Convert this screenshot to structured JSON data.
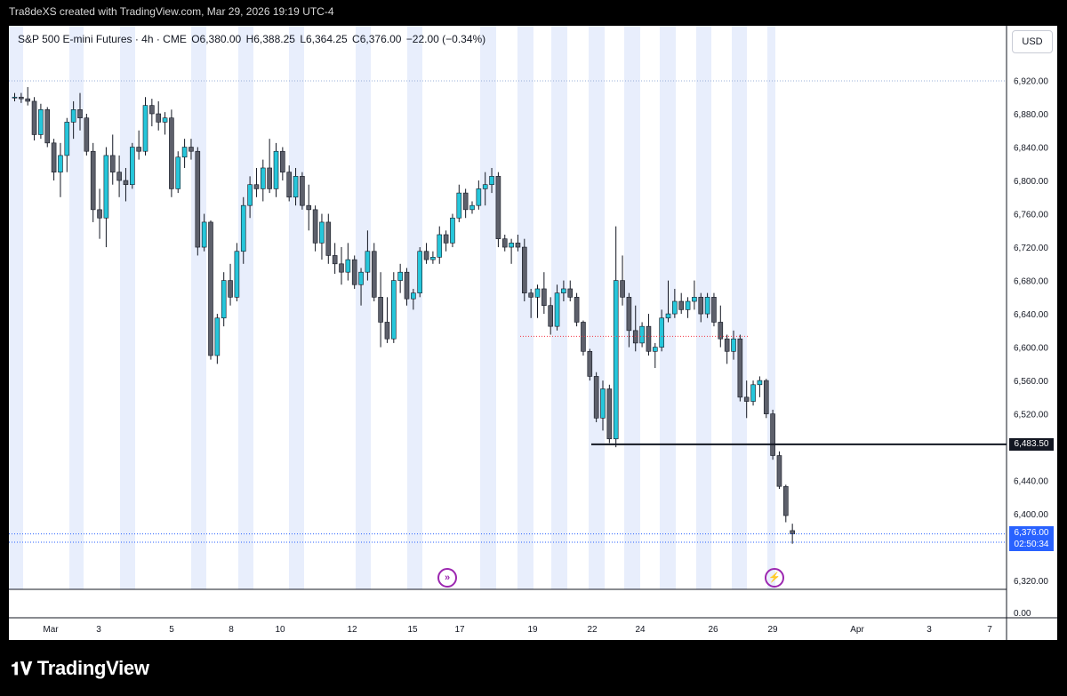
{
  "caption": "Tra8deXS created with TradingView.com, Mar 29, 2026 19:19 UTC-4",
  "legend": {
    "symbol": "S&P 500 E-mini Futures · 4h · CME",
    "open": "O6,380.00",
    "high": "H6,388.25",
    "low": "L6,364.25",
    "close": "C6,376.00",
    "change": "−22.00 (−0.34%)"
  },
  "currency_button": "USD",
  "brand": "TradingView",
  "colors": {
    "up": "#26c6da",
    "down": "#5d606b",
    "session_shade": "#e8eefc",
    "price_line": "#2962ff",
    "level_line": "#131722",
    "zone_line": "#f23645"
  },
  "icons": [
    "go-to-realtime-icon",
    "lightning-event-icon",
    "tradingview-logo-icon"
  ],
  "chart_data": {
    "type": "candlestick",
    "timeframe": "4h",
    "y_axis": {
      "ticks": [
        "6,920.00",
        "6,880.00",
        "6,840.00",
        "6,800.00",
        "6,760.00",
        "6,720.00",
        "6,680.00",
        "6,640.00",
        "6,600.00",
        "6,560.00",
        "6,520.00",
        "6,440.00",
        "6,400.00",
        "6,320.00"
      ],
      "range": [
        6300,
        6950
      ]
    },
    "volume_axis_label": "0.00",
    "x_axis": {
      "ticks": [
        "Mar",
        "3",
        "5",
        "8",
        "10",
        "12",
        "15",
        "17",
        "19",
        "22",
        "24",
        "26",
        "29",
        "Apr",
        "3",
        "7"
      ]
    },
    "price_labels": {
      "level": "6,483.50",
      "last_price": "6,376.00",
      "countdown": "02:50:34"
    },
    "horizontal_level": 6483.5,
    "resistance_zone": 6613,
    "last_price": 6376.0,
    "candles": [
      {
        "o": 6900,
        "h": 6905,
        "l": 6895,
        "c": 6900
      },
      {
        "o": 6900,
        "h": 6905,
        "l": 6893,
        "c": 6898
      },
      {
        "o": 6898,
        "h": 6912,
        "l": 6890,
        "c": 6895
      },
      {
        "o": 6895,
        "h": 6900,
        "l": 6848,
        "c": 6855
      },
      {
        "o": 6855,
        "h": 6892,
        "l": 6850,
        "c": 6885
      },
      {
        "o": 6885,
        "h": 6888,
        "l": 6840,
        "c": 6845
      },
      {
        "o": 6845,
        "h": 6850,
        "l": 6800,
        "c": 6810
      },
      {
        "o": 6810,
        "h": 6845,
        "l": 6780,
        "c": 6830
      },
      {
        "o": 6830,
        "h": 6875,
        "l": 6810,
        "c": 6870
      },
      {
        "o": 6870,
        "h": 6895,
        "l": 6850,
        "c": 6885
      },
      {
        "o": 6885,
        "h": 6905,
        "l": 6860,
        "c": 6875
      },
      {
        "o": 6875,
        "h": 6880,
        "l": 6830,
        "c": 6835
      },
      {
        "o": 6835,
        "h": 6845,
        "l": 6750,
        "c": 6765
      },
      {
        "o": 6765,
        "h": 6790,
        "l": 6730,
        "c": 6755
      },
      {
        "o": 6755,
        "h": 6840,
        "l": 6720,
        "c": 6830
      },
      {
        "o": 6830,
        "h": 6855,
        "l": 6795,
        "c": 6810
      },
      {
        "o": 6810,
        "h": 6830,
        "l": 6780,
        "c": 6800
      },
      {
        "o": 6800,
        "h": 6815,
        "l": 6775,
        "c": 6795
      },
      {
        "o": 6795,
        "h": 6845,
        "l": 6790,
        "c": 6840
      },
      {
        "o": 6840,
        "h": 6860,
        "l": 6825,
        "c": 6835
      },
      {
        "o": 6835,
        "h": 6900,
        "l": 6830,
        "c": 6890
      },
      {
        "o": 6890,
        "h": 6898,
        "l": 6865,
        "c": 6880
      },
      {
        "o": 6880,
        "h": 6895,
        "l": 6860,
        "c": 6870
      },
      {
        "o": 6870,
        "h": 6882,
        "l": 6855,
        "c": 6875
      },
      {
        "o": 6875,
        "h": 6885,
        "l": 6780,
        "c": 6790
      },
      {
        "o": 6790,
        "h": 6835,
        "l": 6785,
        "c": 6828
      },
      {
        "o": 6828,
        "h": 6850,
        "l": 6815,
        "c": 6840
      },
      {
        "o": 6840,
        "h": 6850,
        "l": 6825,
        "c": 6835
      },
      {
        "o": 6835,
        "h": 6840,
        "l": 6710,
        "c": 6720
      },
      {
        "o": 6720,
        "h": 6760,
        "l": 6715,
        "c": 6750
      },
      {
        "o": 6750,
        "h": 6752,
        "l": 6585,
        "c": 6590
      },
      {
        "o": 6590,
        "h": 6640,
        "l": 6580,
        "c": 6635
      },
      {
        "o": 6635,
        "h": 6690,
        "l": 6625,
        "c": 6680
      },
      {
        "o": 6680,
        "h": 6700,
        "l": 6650,
        "c": 6660
      },
      {
        "o": 6660,
        "h": 6725,
        "l": 6655,
        "c": 6715
      },
      {
        "o": 6715,
        "h": 6780,
        "l": 6700,
        "c": 6770
      },
      {
        "o": 6770,
        "h": 6805,
        "l": 6755,
        "c": 6795
      },
      {
        "o": 6795,
        "h": 6815,
        "l": 6780,
        "c": 6790
      },
      {
        "o": 6790,
        "h": 6825,
        "l": 6775,
        "c": 6815
      },
      {
        "o": 6815,
        "h": 6850,
        "l": 6785,
        "c": 6790
      },
      {
        "o": 6790,
        "h": 6845,
        "l": 6780,
        "c": 6835
      },
      {
        "o": 6835,
        "h": 6840,
        "l": 6800,
        "c": 6810
      },
      {
        "o": 6810,
        "h": 6818,
        "l": 6775,
        "c": 6780
      },
      {
        "o": 6780,
        "h": 6815,
        "l": 6770,
        "c": 6805
      },
      {
        "o": 6805,
        "h": 6810,
        "l": 6765,
        "c": 6770
      },
      {
        "o": 6770,
        "h": 6795,
        "l": 6740,
        "c": 6765
      },
      {
        "o": 6765,
        "h": 6770,
        "l": 6715,
        "c": 6725
      },
      {
        "o": 6725,
        "h": 6760,
        "l": 6705,
        "c": 6750
      },
      {
        "o": 6750,
        "h": 6760,
        "l": 6700,
        "c": 6710
      },
      {
        "o": 6710,
        "h": 6725,
        "l": 6688,
        "c": 6700
      },
      {
        "o": 6700,
        "h": 6720,
        "l": 6675,
        "c": 6690
      },
      {
        "o": 6690,
        "h": 6725,
        "l": 6680,
        "c": 6705
      },
      {
        "o": 6705,
        "h": 6710,
        "l": 6670,
        "c": 6675
      },
      {
        "o": 6675,
        "h": 6695,
        "l": 6650,
        "c": 6690
      },
      {
        "o": 6690,
        "h": 6740,
        "l": 6680,
        "c": 6715
      },
      {
        "o": 6715,
        "h": 6725,
        "l": 6655,
        "c": 6660
      },
      {
        "o": 6660,
        "h": 6690,
        "l": 6600,
        "c": 6630
      },
      {
        "o": 6630,
        "h": 6660,
        "l": 6605,
        "c": 6610
      },
      {
        "o": 6610,
        "h": 6690,
        "l": 6605,
        "c": 6680
      },
      {
        "o": 6680,
        "h": 6700,
        "l": 6665,
        "c": 6690
      },
      {
        "o": 6690,
        "h": 6695,
        "l": 6650,
        "c": 6658
      },
      {
        "o": 6658,
        "h": 6670,
        "l": 6645,
        "c": 6665
      },
      {
        "o": 6665,
        "h": 6720,
        "l": 6660,
        "c": 6715
      },
      {
        "o": 6715,
        "h": 6725,
        "l": 6700,
        "c": 6705
      },
      {
        "o": 6705,
        "h": 6715,
        "l": 6700,
        "c": 6708
      },
      {
        "o": 6708,
        "h": 6745,
        "l": 6700,
        "c": 6735
      },
      {
        "o": 6735,
        "h": 6740,
        "l": 6715,
        "c": 6725
      },
      {
        "o": 6725,
        "h": 6760,
        "l": 6720,
        "c": 6755
      },
      {
        "o": 6755,
        "h": 6795,
        "l": 6750,
        "c": 6785
      },
      {
        "o": 6785,
        "h": 6790,
        "l": 6755,
        "c": 6765
      },
      {
        "o": 6765,
        "h": 6775,
        "l": 6760,
        "c": 6770
      },
      {
        "o": 6770,
        "h": 6800,
        "l": 6765,
        "c": 6790
      },
      {
        "o": 6790,
        "h": 6810,
        "l": 6770,
        "c": 6795
      },
      {
        "o": 6795,
        "h": 6815,
        "l": 6785,
        "c": 6805
      },
      {
        "o": 6805,
        "h": 6810,
        "l": 6720,
        "c": 6730
      },
      {
        "o": 6730,
        "h": 6735,
        "l": 6715,
        "c": 6720
      },
      {
        "o": 6720,
        "h": 6730,
        "l": 6700,
        "c": 6725
      },
      {
        "o": 6725,
        "h": 6735,
        "l": 6715,
        "c": 6720
      },
      {
        "o": 6720,
        "h": 6730,
        "l": 6655,
        "c": 6665
      },
      {
        "o": 6665,
        "h": 6670,
        "l": 6635,
        "c": 6660
      },
      {
        "o": 6660,
        "h": 6675,
        "l": 6635,
        "c": 6670
      },
      {
        "o": 6670,
        "h": 6690,
        "l": 6640,
        "c": 6650
      },
      {
        "o": 6650,
        "h": 6660,
        "l": 6615,
        "c": 6625
      },
      {
        "o": 6625,
        "h": 6675,
        "l": 6620,
        "c": 6665
      },
      {
        "o": 6665,
        "h": 6680,
        "l": 6655,
        "c": 6670
      },
      {
        "o": 6670,
        "h": 6680,
        "l": 6655,
        "c": 6660
      },
      {
        "o": 6660,
        "h": 6665,
        "l": 6625,
        "c": 6630
      },
      {
        "o": 6630,
        "h": 6632,
        "l": 6590,
        "c": 6595
      },
      {
        "o": 6595,
        "h": 6598,
        "l": 6560,
        "c": 6565
      },
      {
        "o": 6565,
        "h": 6570,
        "l": 6510,
        "c": 6515
      },
      {
        "o": 6515,
        "h": 6560,
        "l": 6500,
        "c": 6550
      },
      {
        "o": 6550,
        "h": 6555,
        "l": 6485,
        "c": 6490
      },
      {
        "o": 6490,
        "h": 6745,
        "l": 6480,
        "c": 6680
      },
      {
        "o": 6680,
        "h": 6710,
        "l": 6650,
        "c": 6660
      },
      {
        "o": 6660,
        "h": 6665,
        "l": 6600,
        "c": 6620
      },
      {
        "o": 6620,
        "h": 6650,
        "l": 6595,
        "c": 6605
      },
      {
        "o": 6605,
        "h": 6630,
        "l": 6600,
        "c": 6625
      },
      {
        "o": 6625,
        "h": 6640,
        "l": 6590,
        "c": 6595
      },
      {
        "o": 6595,
        "h": 6605,
        "l": 6575,
        "c": 6600
      },
      {
        "o": 6600,
        "h": 6645,
        "l": 6595,
        "c": 6635
      },
      {
        "o": 6635,
        "h": 6680,
        "l": 6630,
        "c": 6640
      },
      {
        "o": 6640,
        "h": 6670,
        "l": 6635,
        "c": 6655
      },
      {
        "o": 6655,
        "h": 6665,
        "l": 6640,
        "c": 6645
      },
      {
        "o": 6645,
        "h": 6660,
        "l": 6635,
        "c": 6655
      },
      {
        "o": 6655,
        "h": 6680,
        "l": 6645,
        "c": 6660
      },
      {
        "o": 6660,
        "h": 6665,
        "l": 6630,
        "c": 6640
      },
      {
        "o": 6640,
        "h": 6665,
        "l": 6635,
        "c": 6660
      },
      {
        "o": 6660,
        "h": 6665,
        "l": 6625,
        "c": 6630
      },
      {
        "o": 6630,
        "h": 6650,
        "l": 6600,
        "c": 6610
      },
      {
        "o": 6610,
        "h": 6615,
        "l": 6580,
        "c": 6595
      },
      {
        "o": 6595,
        "h": 6620,
        "l": 6585,
        "c": 6610
      },
      {
        "o": 6610,
        "h": 6615,
        "l": 6535,
        "c": 6540
      },
      {
        "o": 6540,
        "h": 6560,
        "l": 6515,
        "c": 6535
      },
      {
        "o": 6535,
        "h": 6560,
        "l": 6530,
        "c": 6555
      },
      {
        "o": 6555,
        "h": 6565,
        "l": 6540,
        "c": 6560
      },
      {
        "o": 6560,
        "h": 6562,
        "l": 6515,
        "c": 6520
      },
      {
        "o": 6520,
        "h": 6525,
        "l": 6465,
        "c": 6470
      },
      {
        "o": 6470,
        "h": 6475,
        "l": 6430,
        "c": 6433
      },
      {
        "o": 6433,
        "h": 6435,
        "l": 6390,
        "c": 6398
      },
      {
        "o": 6380,
        "h": 6388.25,
        "l": 6364.25,
        "c": 6376
      }
    ]
  }
}
